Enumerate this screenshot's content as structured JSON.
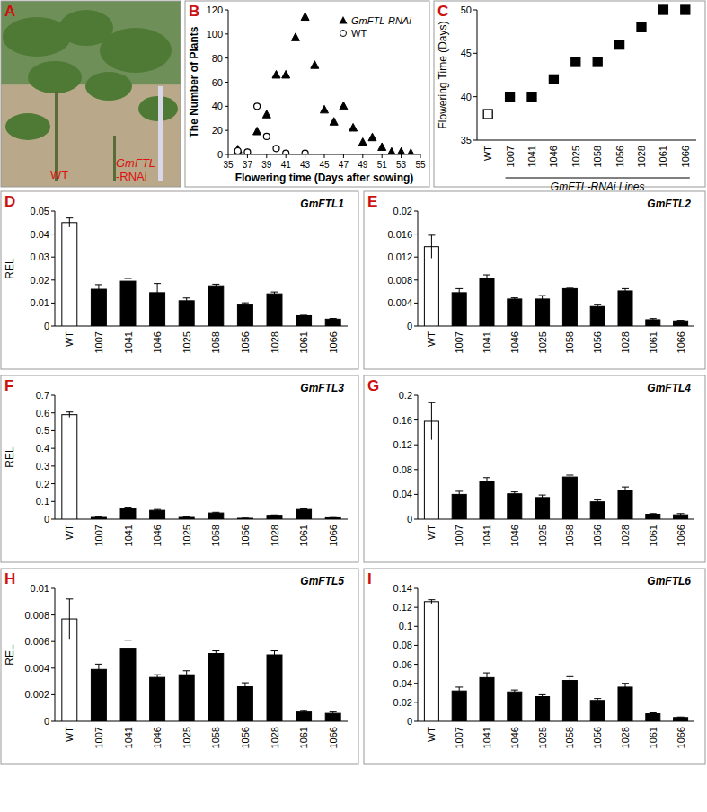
{
  "photo": {
    "panel": "A",
    "labels": [
      "WT",
      "GmFTL",
      "-RNAi"
    ]
  },
  "chart_data": [
    {
      "type": "scatter",
      "panel": "B",
      "xlabel": "Flowering time (Days after sowing)",
      "ylabel": "The Number of Plants",
      "xlim": [
        35,
        55
      ],
      "xticks": [
        35,
        37,
        39,
        41,
        43,
        45,
        47,
        49,
        51,
        53,
        55
      ],
      "ylim": [
        0,
        120
      ],
      "yticks": [
        0,
        20,
        40,
        60,
        80,
        100,
        120
      ],
      "legend": "upper right",
      "series": [
        {
          "name": "GmFTL-RNAi",
          "marker": "triangle",
          "color": "#000000",
          "x": [
            36,
            37,
            38,
            39,
            40,
            41,
            42,
            43,
            44,
            45,
            46,
            47,
            48,
            49,
            50,
            51,
            52,
            53,
            54
          ],
          "values": [
            4,
            1,
            19,
            33,
            66,
            66,
            97,
            114,
            74,
            37,
            27,
            40,
            22,
            10,
            14,
            6,
            2,
            2,
            1
          ]
        },
        {
          "name": "WT",
          "marker": "open_circle",
          "color": "#000000",
          "x": [
            36,
            37,
            38,
            39,
            40,
            41,
            43
          ],
          "values": [
            3,
            2,
            40,
            15,
            5,
            1,
            1
          ]
        }
      ]
    },
    {
      "type": "scatter",
      "panel": "C",
      "ylabel": "Flowering Time (Days)",
      "annotation": "GmFTL-RNAi Lines",
      "marker": "square",
      "categories": [
        "WT",
        "1007",
        "1041",
        "1046",
        "1025",
        "1058",
        "1056",
        "1028",
        "1061",
        "1066"
      ],
      "values": [
        38,
        40,
        40,
        42,
        44,
        44,
        46,
        48,
        50,
        50
      ],
      "colors": [
        "#ffffff",
        "#000000",
        "#000000",
        "#000000",
        "#000000",
        "#000000",
        "#000000",
        "#000000",
        "#000000",
        "#000000"
      ],
      "ylim": [
        35,
        50
      ],
      "yticks": [
        35,
        40,
        45,
        50
      ]
    },
    {
      "type": "bar",
      "panel": "D",
      "title": "GmFTL1",
      "ylabel": "REL",
      "categories": [
        "WT",
        "1007",
        "1041",
        "1046",
        "1025",
        "1058",
        "1056",
        "1028",
        "1061",
        "1066"
      ],
      "values": [
        0.045,
        0.016,
        0.0195,
        0.0145,
        0.011,
        0.0175,
        0.0093,
        0.014,
        0.0045,
        0.003
      ],
      "errors": [
        0.002,
        0.002,
        0.0012,
        0.004,
        0.0012,
        0.0007,
        0.0008,
        0.0008,
        0.0002,
        0.0003
      ],
      "colors": [
        "#ffffff",
        "#000000",
        "#000000",
        "#000000",
        "#000000",
        "#000000",
        "#000000",
        "#000000",
        "#000000",
        "#000000"
      ],
      "ylim": [
        0,
        0.05
      ],
      "yticks": [
        0,
        0.01,
        0.02,
        0.03,
        0.04,
        0.05
      ]
    },
    {
      "type": "bar",
      "panel": "E",
      "title": "GmFTL2",
      "categories": [
        "WT",
        "1007",
        "1041",
        "1046",
        "1025",
        "1058",
        "1056",
        "1028",
        "1061",
        "1066"
      ],
      "values": [
        0.0138,
        0.0058,
        0.0082,
        0.0047,
        0.0047,
        0.0065,
        0.0034,
        0.0061,
        0.0011,
        0.0009
      ],
      "errors": [
        0.002,
        0.0007,
        0.0007,
        0.0002,
        0.0006,
        0.0002,
        0.0003,
        0.0004,
        0.0002,
        0.0001
      ],
      "colors": [
        "#ffffff",
        "#000000",
        "#000000",
        "#000000",
        "#000000",
        "#000000",
        "#000000",
        "#000000",
        "#000000",
        "#000000"
      ],
      "ylim": [
        0,
        0.02
      ],
      "yticks": [
        0,
        0.004,
        0.008,
        0.012,
        0.016,
        0.02
      ]
    },
    {
      "type": "bar",
      "panel": "F",
      "title": "GmFTL3",
      "ylabel": "REL",
      "categories": [
        "WT",
        "1007",
        "1041",
        "1046",
        "1025",
        "1058",
        "1056",
        "1028",
        "1061",
        "1066"
      ],
      "values": [
        0.59,
        0.01,
        0.058,
        0.05,
        0.01,
        0.035,
        0.005,
        0.022,
        0.055,
        0.008
      ],
      "errors": [
        0.015,
        0.002,
        0.005,
        0.005,
        0.002,
        0.004,
        0.001,
        0.002,
        0.003,
        0.001
      ],
      "colors": [
        "#ffffff",
        "#000000",
        "#000000",
        "#000000",
        "#000000",
        "#000000",
        "#000000",
        "#000000",
        "#000000",
        "#000000"
      ],
      "ylim": [
        0,
        0.7
      ],
      "yticks": [
        0,
        0.1,
        0.2,
        0.3,
        0.4,
        0.5,
        0.6,
        0.7
      ]
    },
    {
      "type": "bar",
      "panel": "G",
      "title": "GmFTL4",
      "categories": [
        "WT",
        "1007",
        "1041",
        "1046",
        "1025",
        "1058",
        "1056",
        "1028",
        "1061",
        "1066"
      ],
      "values": [
        0.158,
        0.04,
        0.061,
        0.041,
        0.035,
        0.068,
        0.028,
        0.047,
        0.008,
        0.007
      ],
      "errors": [
        0.03,
        0.005,
        0.006,
        0.003,
        0.004,
        0.003,
        0.003,
        0.005,
        0.001,
        0.002
      ],
      "colors": [
        "#ffffff",
        "#000000",
        "#000000",
        "#000000",
        "#000000",
        "#000000",
        "#000000",
        "#000000",
        "#000000",
        "#000000"
      ],
      "ylim": [
        0,
        0.2
      ],
      "yticks": [
        0,
        0.04,
        0.08,
        0.12,
        0.16,
        0.2
      ]
    },
    {
      "type": "bar",
      "panel": "H",
      "title": "GmFTL5",
      "ylabel": "REL",
      "categories": [
        "WT",
        "1007",
        "1041",
        "1046",
        "1025",
        "1058",
        "1056",
        "1028",
        "1061",
        "1066"
      ],
      "values": [
        0.0077,
        0.0039,
        0.0055,
        0.0033,
        0.0035,
        0.0051,
        0.0026,
        0.005,
        0.0007,
        0.0006
      ],
      "errors": [
        0.0015,
        0.0004,
        0.0006,
        0.0002,
        0.0003,
        0.0002,
        0.0003,
        0.0003,
        0.0001,
        0.0001
      ],
      "colors": [
        "#ffffff",
        "#000000",
        "#000000",
        "#000000",
        "#000000",
        "#000000",
        "#000000",
        "#000000",
        "#000000",
        "#000000"
      ],
      "ylim": [
        0,
        0.01
      ],
      "yticks": [
        0,
        0.002,
        0.004,
        0.006,
        0.008,
        0.01
      ]
    },
    {
      "type": "bar",
      "panel": "I",
      "title": "GmFTL6",
      "categories": [
        "WT",
        "1007",
        "1041",
        "1046",
        "1025",
        "1058",
        "1056",
        "1028",
        "1061",
        "1066"
      ],
      "values": [
        0.126,
        0.032,
        0.046,
        0.031,
        0.026,
        0.043,
        0.022,
        0.036,
        0.008,
        0.004
      ],
      "errors": [
        0.002,
        0.004,
        0.005,
        0.002,
        0.002,
        0.004,
        0.002,
        0.004,
        0.001,
        0.0005
      ],
      "colors": [
        "#ffffff",
        "#000000",
        "#000000",
        "#000000",
        "#000000",
        "#000000",
        "#000000",
        "#000000",
        "#000000",
        "#000000"
      ],
      "ylim": [
        0,
        0.14
      ],
      "yticks": [
        0,
        0.02,
        0.04,
        0.06,
        0.08,
        0.1,
        0.12,
        0.14
      ]
    }
  ]
}
